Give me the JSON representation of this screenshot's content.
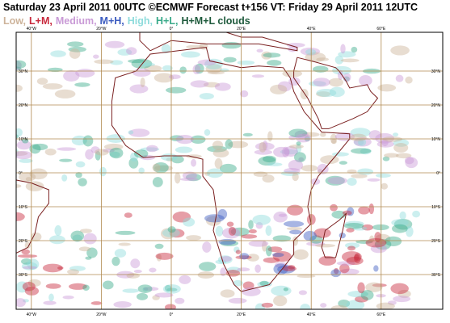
{
  "header": {
    "title": "Saturday 23 April 2011 00UTC ©ECMWF Forecast t+156 VT: Friday 29 April 2011 12UTC"
  },
  "legend": [
    {
      "label": "Low,",
      "color": "#cdb39a"
    },
    {
      "label": "L+M,",
      "color": "#c8283c"
    },
    {
      "label": "Medium,",
      "color": "#c99ad6"
    },
    {
      "label": "M+H,",
      "color": "#3c5cc0"
    },
    {
      "label": "High,",
      "color": "#8fdcdc"
    },
    {
      "label": "H+L,",
      "color": "#3aaa8a"
    },
    {
      "label": "H+M+L clouds",
      "color": "#1e5a3c"
    }
  ],
  "map": {
    "lon_labels": [
      "40°W",
      "20°W",
      "0°",
      "20°E",
      "40°E",
      "60°E"
    ],
    "lat_labels": [
      "30°N",
      "20°N",
      "10°N",
      "0°",
      "10°S",
      "20°S",
      "30°S"
    ]
  }
}
